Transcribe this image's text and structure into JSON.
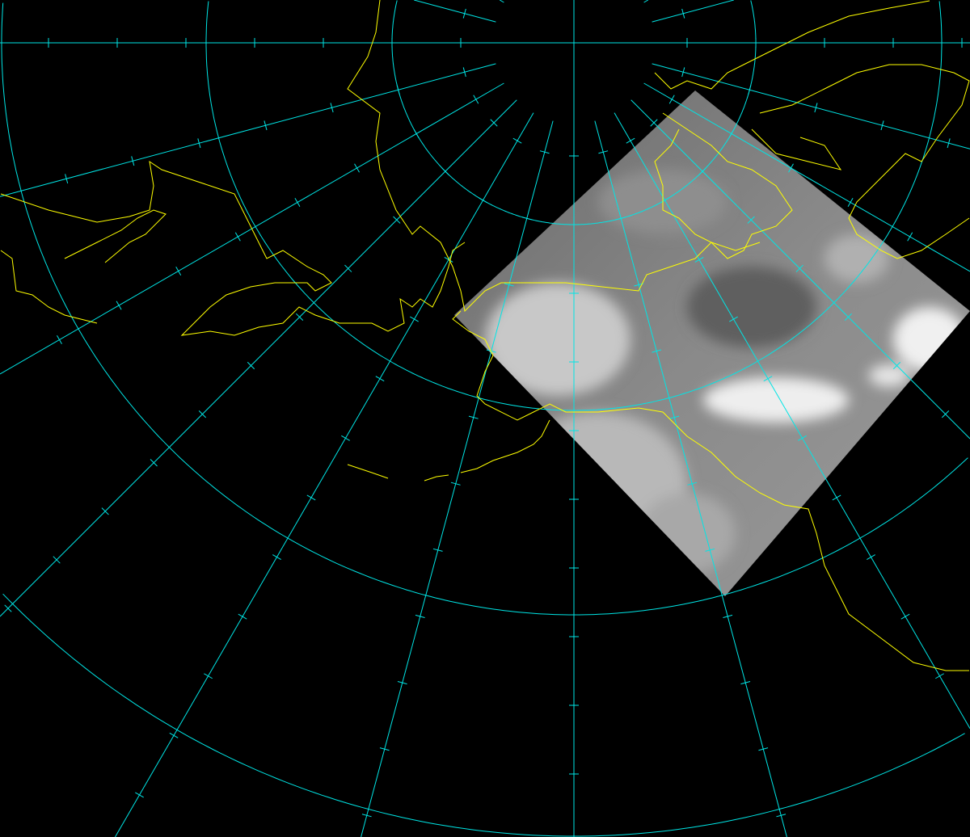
{
  "map": {
    "projection": "polar-stereographic",
    "background_color": "#000000",
    "graticule_color": "#00e5e5",
    "coastline_color": "#ffff00",
    "meridian_spacing_deg": 15,
    "imagery": {
      "type": "satellite-cloud-imagery",
      "base_color": "#7a7a7a",
      "cloud_color": "#eeeeee"
    }
  }
}
